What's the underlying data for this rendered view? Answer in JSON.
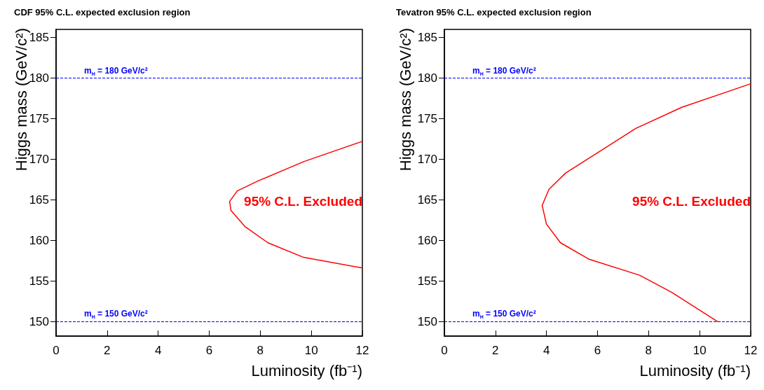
{
  "chart_data": [
    {
      "type": "line",
      "title": "CDF 95% C.L. expected exclusion region",
      "xlabel": "Luminosity (fb⁻¹)",
      "ylabel": "Higgs mass (GeV/c²)",
      "xlim": [
        0,
        12
      ],
      "xticks": [
        0,
        2,
        4,
        6,
        8,
        10,
        12
      ],
      "ylim": [
        148.2,
        186
      ],
      "yticks": [
        150,
        155,
        160,
        165,
        170,
        175,
        180,
        185
      ],
      "marker": "none",
      "series": [
        {
          "color": "#ff0000",
          "x": [
            12,
            9.7,
            7.9,
            7.1,
            6.8,
            6.85,
            7.4,
            8.3,
            9.7,
            12
          ],
          "values": [
            172.2,
            169.7,
            167.3,
            166.1,
            164.8,
            163.7,
            161.7,
            159.7,
            157.9,
            156.6
          ]
        }
      ],
      "ref_lines": [
        {
          "axis": "y",
          "value": 180,
          "label": "m$_{H}$ = 180 GeV/c²",
          "color": "#0000ff",
          "line_style": "dashed"
        },
        {
          "axis": "y",
          "value": 150,
          "label": "m$_{H}$ = 150 GeV/c²",
          "color": "#0000ff",
          "line_style": "dashed"
        }
      ],
      "annotations": [
        "95% C.L. Excluded"
      ]
    },
    {
      "type": "line",
      "title": "Tevatron 95% C.L. expected exclusion region",
      "xlabel": "Luminosity (fb⁻¹)",
      "ylabel": "Higgs mass (GeV/c²)",
      "xlim": [
        0,
        12
      ],
      "xticks": [
        0,
        2,
        4,
        6,
        8,
        10,
        12
      ],
      "ylim": [
        148.2,
        186
      ],
      "yticks": [
        150,
        155,
        160,
        165,
        170,
        175,
        180,
        185
      ],
      "marker": "none",
      "series": [
        {
          "color": "#ff0000",
          "x": [
            12,
            9.3,
            7.5,
            6.1,
            4.75,
            4.1,
            3.83,
            4.0,
            4.55,
            5.65,
            7.65,
            8.9,
            10.7
          ],
          "values": [
            179.3,
            176.4,
            173.8,
            171.0,
            168.3,
            166.3,
            164.3,
            162.0,
            159.7,
            157.7,
            155.7,
            153.6,
            150
          ]
        }
      ],
      "ref_lines": [
        {
          "axis": "y",
          "value": 180,
          "label": "m$_{H}$ = 180 GeV/c²",
          "color": "#0000ff",
          "line_style": "dashed"
        },
        {
          "axis": "y",
          "value": 150,
          "label": "m$_{H}$ = 150 GeV/c²",
          "color": "#0000ff",
          "line_style": "dashed"
        }
      ],
      "annotations": [
        "95% C.L. Excluded"
      ]
    }
  ]
}
